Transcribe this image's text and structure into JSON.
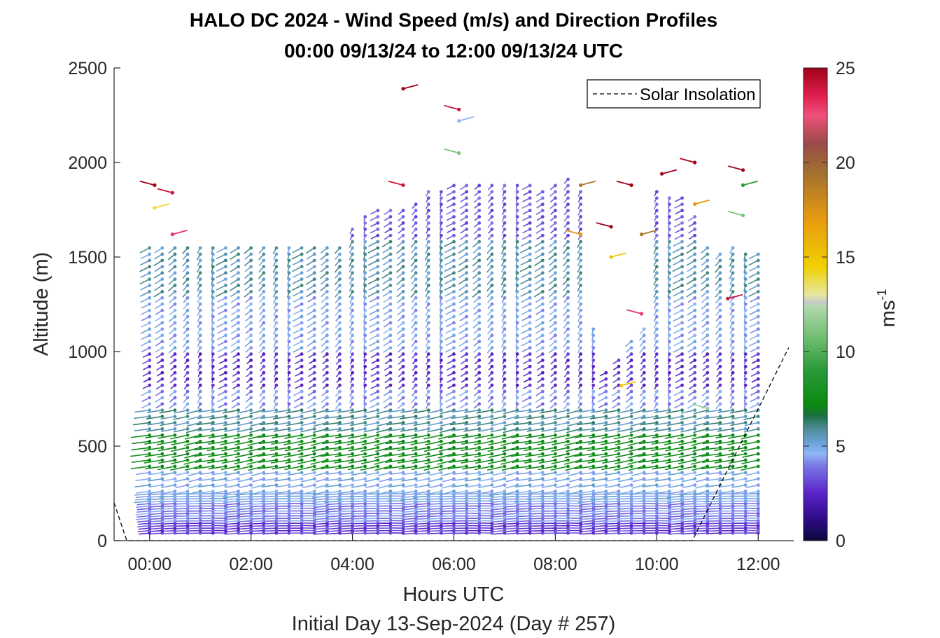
{
  "chart_data": {
    "type": "wind barb profile",
    "title": "HALO DC 2024 - Wind Speed (m/s) and Direction Profiles",
    "subtitle": "00:00 09/13/24 to 12:00 09/13/24  UTC",
    "xlabel": "Hours UTC",
    "xlabel2": "Initial Day 13-Sep-2024 (Day # 257)",
    "ylabel": "Altitude (m)",
    "colorbar_label": "ms",
    "colorbar_label_exp": "-1",
    "xlim": [
      -0.7,
      12.7
    ],
    "ylim": [
      0,
      2500
    ],
    "x_ticks": [
      0,
      2,
      4,
      6,
      8,
      10,
      12
    ],
    "x_tick_labels": [
      "00:00",
      "02:00",
      "04:00",
      "06:00",
      "08:00",
      "10:00",
      "12:00"
    ],
    "y_ticks": [
      0,
      500,
      1000,
      1500,
      2000,
      2500
    ],
    "y_tick_labels": [
      "0",
      "500",
      "1000",
      "1500",
      "2000",
      "2500"
    ],
    "colorbar_ticks": [
      0,
      5,
      10,
      15,
      20,
      25
    ],
    "colorbar_tick_labels": [
      "0",
      "5",
      "10",
      "15",
      "20",
      "25"
    ],
    "colorbar_range": [
      0,
      25
    ],
    "colormap": [
      [
        0,
        "#0a0a3a"
      ],
      [
        1,
        "#2a0a80"
      ],
      [
        2.5,
        "#5a22c8"
      ],
      [
        4,
        "#7a7ae6"
      ],
      [
        4.6,
        "#8fb6f5"
      ],
      [
        5.2,
        "#6aa0d8"
      ],
      [
        6,
        "#4a8a8e"
      ],
      [
        6.6,
        "#1a7040"
      ],
      [
        7.2,
        "#0a8a10"
      ],
      [
        9,
        "#2a9a38"
      ],
      [
        11,
        "#7ac27a"
      ],
      [
        12.4,
        "#b2d8b0"
      ],
      [
        12.6,
        "#c8c8c8"
      ],
      [
        13,
        "#e6e6a0"
      ],
      [
        14.5,
        "#f0d000"
      ],
      [
        17,
        "#e89a10"
      ],
      [
        19.5,
        "#a07030"
      ],
      [
        21,
        "#9a4a4a"
      ],
      [
        22.5,
        "#f0507a"
      ],
      [
        23.5,
        "#e02050"
      ],
      [
        25,
        "#a00018"
      ]
    ],
    "legend": {
      "entries": [
        "Solar Insolation"
      ],
      "location": "top-right"
    },
    "profile_times_hours": [
      0,
      0.25,
      0.5,
      0.75,
      1,
      1.25,
      1.5,
      1.75,
      2,
      2.25,
      2.5,
      2.75,
      3,
      3.25,
      3.5,
      3.75,
      4,
      4.25,
      4.5,
      4.75,
      5,
      5.25,
      5.5,
      5.75,
      6,
      6.25,
      6.5,
      6.75,
      7,
      7.25,
      7.5,
      7.75,
      8,
      8.25,
      8.5,
      8.75,
      9,
      9.25,
      9.5,
      9.75,
      10,
      10.25,
      10.5,
      10.75,
      11,
      11.25,
      11.5,
      11.75,
      12
    ],
    "profile_top_altitude_m": [
      1580,
      1560,
      1560,
      1560,
      1560,
      1560,
      1560,
      1560,
      1560,
      1560,
      1560,
      1560,
      1560,
      1560,
      1560,
      1560,
      1660,
      1740,
      1760,
      1760,
      1760,
      1800,
      1860,
      1860,
      1880,
      1880,
      1880,
      1880,
      1900,
      1900,
      1880,
      1860,
      1880,
      1920,
      1860,
      1120,
      900,
      980,
      1080,
      1120,
      1860,
      1840,
      1840,
      1720,
      1560,
      1540,
      1580,
      1520,
      1520
    ],
    "wind_speed_layers_m_s": [
      {
        "z_top_m": 100,
        "speed": 3.0
      },
      {
        "z_top_m": 200,
        "speed": 4.0
      },
      {
        "z_top_m": 380,
        "speed": 4.8
      },
      {
        "z_top_m": 560,
        "speed": 7.5
      },
      {
        "z_top_m": 700,
        "speed": 5.8
      },
      {
        "z_top_m": 820,
        "speed": 4.2
      },
      {
        "z_top_m": 1000,
        "speed": 2.8
      },
      {
        "z_top_m": 1300,
        "speed": 4.6
      },
      {
        "z_top_m": 1600,
        "speed": 5.6
      },
      {
        "z_top_m": 2000,
        "speed": 3.5
      }
    ],
    "wind_direction_note": "mostly northerly to north-easterly in the upper layer, westerly to north-westerly near the surface",
    "solar_insolation": [
      [
        -0.7,
        200
      ],
      [
        -0.45,
        0
      ],
      [
        10.7,
        0
      ],
      [
        12.6,
        1020
      ]
    ],
    "scattered_high_points": [
      {
        "t": 0.1,
        "z": 1880,
        "speed": 25
      },
      {
        "t": 0.1,
        "z": 1760,
        "speed": 14
      },
      {
        "t": 0.45,
        "z": 1840,
        "speed": 24
      },
      {
        "t": 0.45,
        "z": 1620,
        "speed": 23
      },
      {
        "t": 5.0,
        "z": 1880,
        "speed": 24
      },
      {
        "t": 5.0,
        "z": 2390,
        "speed": 25
      },
      {
        "t": 6.1,
        "z": 2280,
        "speed": 24
      },
      {
        "t": 6.1,
        "z": 2220,
        "speed": 4.6
      },
      {
        "t": 6.1,
        "z": 2050,
        "speed": 11
      },
      {
        "t": 8.5,
        "z": 1880,
        "speed": 19
      },
      {
        "t": 8.5,
        "z": 1620,
        "speed": 17
      },
      {
        "t": 9.1,
        "z": 1500,
        "speed": 15
      },
      {
        "t": 9.1,
        "z": 1660,
        "speed": 25
      },
      {
        "t": 9.3,
        "z": 820,
        "speed": 15
      },
      {
        "t": 9.5,
        "z": 1880,
        "speed": 25
      },
      {
        "t": 9.7,
        "z": 1620,
        "speed": 19
      },
      {
        "t": 9.7,
        "z": 1200,
        "speed": 23
      },
      {
        "t": 10.1,
        "z": 1940,
        "speed": 25
      },
      {
        "t": 10.75,
        "z": 2000,
        "speed": 25
      },
      {
        "t": 10.75,
        "z": 1780,
        "speed": 17
      },
      {
        "t": 11.0,
        "z": 700,
        "speed": 12
      },
      {
        "t": 11.4,
        "z": 1280,
        "speed": 24
      },
      {
        "t": 11.7,
        "z": 1960,
        "speed": 25
      },
      {
        "t": 11.7,
        "z": 1880,
        "speed": 9
      },
      {
        "t": 11.7,
        "z": 1720,
        "speed": 11
      }
    ]
  }
}
